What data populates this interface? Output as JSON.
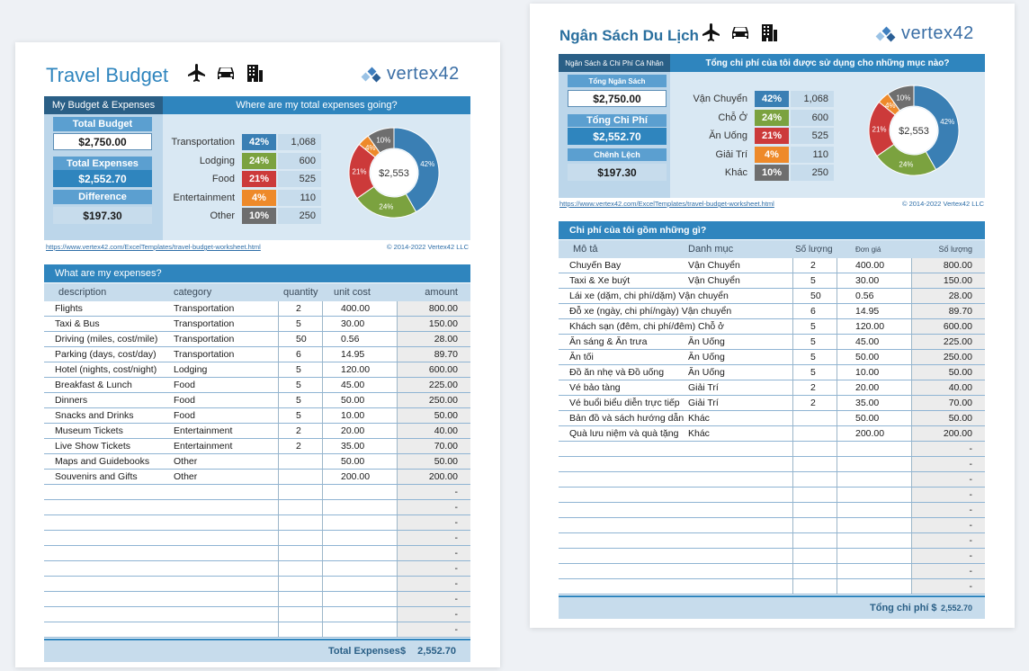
{
  "colors": {
    "transport": "#3a7fb4",
    "lodging": "#7ba23f",
    "food": "#cc3a3a",
    "entertainment": "#ee8a2a",
    "other": "#6e6e6e"
  },
  "en": {
    "title": "Travel Budget",
    "logo": "vertex42",
    "left_header": "My Budget & Expenses",
    "right_header": "Where are my total expenses going?",
    "total_budget_label": "Total Budget",
    "total_budget": "$2,750.00",
    "total_expenses_label": "Total Expenses",
    "total_expenses": "$2,552.70",
    "difference_label": "Difference",
    "difference": "$197.30",
    "categories": [
      {
        "name": "Transportation",
        "pct": "42%",
        "amount": "1,068"
      },
      {
        "name": "Lodging",
        "pct": "24%",
        "amount": "600"
      },
      {
        "name": "Food",
        "pct": "21%",
        "amount": "525"
      },
      {
        "name": "Entertainment",
        "pct": "4%",
        "amount": "110"
      },
      {
        "name": "Other",
        "pct": "10%",
        "amount": "250"
      }
    ],
    "donut_center": "$2,553",
    "url": "https://www.vertex42.com/ExcelTemplates/travel-budget-worksheet.html",
    "copyright": "© 2014-2022 Vertex42 LLC",
    "table_title": "What are my expenses?",
    "headers": {
      "desc": "description",
      "cat": "category",
      "qty": "quantity",
      "unit": "unit cost",
      "amt": "amount"
    },
    "rows": [
      {
        "desc": "Flights",
        "cat": "Transportation",
        "qty": "2",
        "unit": "400.00",
        "amt": "800.00"
      },
      {
        "desc": "Taxi & Bus",
        "cat": "Transportation",
        "qty": "5",
        "unit": "30.00",
        "amt": "150.00"
      },
      {
        "desc": "Driving (miles, cost/mile)",
        "cat": "Transportation",
        "qty": "50",
        "unit": "0.56",
        "amt": "28.00"
      },
      {
        "desc": "Parking (days, cost/day)",
        "cat": "Transportation",
        "qty": "6",
        "unit": "14.95",
        "amt": "89.70"
      },
      {
        "desc": "Hotel (nights, cost/night)",
        "cat": "Lodging",
        "qty": "5",
        "unit": "120.00",
        "amt": "600.00"
      },
      {
        "desc": "Breakfast & Lunch",
        "cat": "Food",
        "qty": "5",
        "unit": "45.00",
        "amt": "225.00"
      },
      {
        "desc": "Dinners",
        "cat": "Food",
        "qty": "5",
        "unit": "50.00",
        "amt": "250.00"
      },
      {
        "desc": "Snacks and Drinks",
        "cat": "Food",
        "qty": "5",
        "unit": "10.00",
        "amt": "50.00"
      },
      {
        "desc": "Museum Tickets",
        "cat": "Entertainment",
        "qty": "2",
        "unit": "20.00",
        "amt": "40.00"
      },
      {
        "desc": "Live Show Tickets",
        "cat": "Entertainment",
        "qty": "2",
        "unit": "35.00",
        "amt": "70.00"
      },
      {
        "desc": "Maps and Guidebooks",
        "cat": "Other",
        "qty": "",
        "unit": "50.00",
        "amt": "50.00"
      },
      {
        "desc": "Souvenirs and Gifts",
        "cat": "Other",
        "qty": "",
        "unit": "200.00",
        "amt": "200.00"
      },
      {
        "desc": "",
        "cat": "",
        "qty": "",
        "unit": "",
        "amt": "-"
      },
      {
        "desc": "",
        "cat": "",
        "qty": "",
        "unit": "",
        "amt": "-"
      },
      {
        "desc": "",
        "cat": "",
        "qty": "",
        "unit": "",
        "amt": "-"
      },
      {
        "desc": "",
        "cat": "",
        "qty": "",
        "unit": "",
        "amt": "-"
      },
      {
        "desc": "",
        "cat": "",
        "qty": "",
        "unit": "",
        "amt": "-"
      },
      {
        "desc": "",
        "cat": "",
        "qty": "",
        "unit": "",
        "amt": "-"
      },
      {
        "desc": "",
        "cat": "",
        "qty": "",
        "unit": "",
        "amt": "-"
      },
      {
        "desc": "",
        "cat": "",
        "qty": "",
        "unit": "",
        "amt": "-"
      },
      {
        "desc": "",
        "cat": "",
        "qty": "",
        "unit": "",
        "amt": "-"
      },
      {
        "desc": "",
        "cat": "",
        "qty": "",
        "unit": "",
        "amt": "-"
      }
    ],
    "total_label": "Total Expenses",
    "total_currency": "$",
    "total_value": "2,552.70"
  },
  "vi": {
    "title": "Ngân Sách Du Lịch",
    "logo": "vertex42",
    "left_header": "Ngân Sách & Chi Phí Cá Nhân",
    "right_header": "Tổng chi phí của tôi được sử dụng cho những mục nào?",
    "total_budget_label": "Tổng Ngân Sách",
    "total_budget": "$2,750.00",
    "total_expenses_label": "Tổng Chi Phí",
    "total_expenses": "$2,552.70",
    "difference_label": "Chênh Lệch",
    "difference": "$197.30",
    "categories": [
      {
        "name": "Vận Chuyển",
        "pct": "42%",
        "amount": "1,068"
      },
      {
        "name": "Chỗ Ở",
        "pct": "24%",
        "amount": "600"
      },
      {
        "name": "Ăn Uống",
        "pct": "21%",
        "amount": "525"
      },
      {
        "name": "Giải Trí",
        "pct": "4%",
        "amount": "110"
      },
      {
        "name": "Khác",
        "pct": "10%",
        "amount": "250"
      }
    ],
    "donut_center": "$2,553",
    "url": "https://www.vertex42.com/ExcelTemplates/travel-budget-worksheet.html",
    "copyright": "© 2014-2022 Vertex42 LLC",
    "table_title": "Chi phí của tôi gồm những gì?",
    "headers": {
      "desc": "Mô tả",
      "cat": "Danh mục",
      "qty": "Số lượng",
      "unit": "Đơn giá",
      "amt": "Số lượng"
    },
    "rows": [
      {
        "desc": "Chuyến Bay",
        "cat": "Vận Chuyển",
        "qty": "2",
        "unit": "400.00",
        "amt": "800.00"
      },
      {
        "desc": "Taxi & Xe buýt",
        "cat": "Vận Chuyển",
        "qty": "5",
        "unit": "30.00",
        "amt": "150.00"
      },
      {
        "desc": "Lái xe (dặm, chi phí/dặm) Vận chuyển",
        "cat": "",
        "qty": "50",
        "unit": "0.56",
        "amt": "28.00"
      },
      {
        "desc": "Đỗ xe (ngày, chi phí/ngày) Vận chuyển",
        "cat": "",
        "qty": "6",
        "unit": "14.95",
        "amt": "89.70"
      },
      {
        "desc": "Khách sạn (đêm, chi phí/đêm) Chỗ ở",
        "cat": "",
        "qty": "5",
        "unit": "120.00",
        "amt": "600.00"
      },
      {
        "desc": "Ăn sáng & Ăn trưa",
        "cat": "Ăn Uống",
        "qty": "5",
        "unit": "45.00",
        "amt": "225.00"
      },
      {
        "desc": "Ăn tối",
        "cat": "Ăn Uống",
        "qty": "5",
        "unit": "50.00",
        "amt": "250.00"
      },
      {
        "desc": "Đồ ăn nhẹ và Đồ uống",
        "cat": "Ăn Uống",
        "qty": "5",
        "unit": "10.00",
        "amt": "50.00"
      },
      {
        "desc": "Vé bảo tàng",
        "cat": "Giải Trí",
        "qty": "2",
        "unit": "20.00",
        "amt": "40.00"
      },
      {
        "desc": "Vé buổi biểu diễn trực tiếp",
        "cat": "Giải Trí",
        "qty": "2",
        "unit": "35.00",
        "amt": "70.00"
      },
      {
        "desc": "Bản đồ và sách hướng dẫn",
        "cat": "Khác",
        "qty": "",
        "unit": "50.00",
        "amt": "50.00"
      },
      {
        "desc": "Quà lưu niệm và quà tặng",
        "cat": "Khác",
        "qty": "",
        "unit": "200.00",
        "amt": "200.00"
      },
      {
        "desc": "",
        "cat": "",
        "qty": "",
        "unit": "",
        "amt": "-"
      },
      {
        "desc": "",
        "cat": "",
        "qty": "",
        "unit": "",
        "amt": "-"
      },
      {
        "desc": "",
        "cat": "",
        "qty": "",
        "unit": "",
        "amt": "-"
      },
      {
        "desc": "",
        "cat": "",
        "qty": "",
        "unit": "",
        "amt": "-"
      },
      {
        "desc": "",
        "cat": "",
        "qty": "",
        "unit": "",
        "amt": "-"
      },
      {
        "desc": "",
        "cat": "",
        "qty": "",
        "unit": "",
        "amt": "-"
      },
      {
        "desc": "",
        "cat": "",
        "qty": "",
        "unit": "",
        "amt": "-"
      },
      {
        "desc": "",
        "cat": "",
        "qty": "",
        "unit": "",
        "amt": "-"
      },
      {
        "desc": "",
        "cat": "",
        "qty": "",
        "unit": "",
        "amt": "-"
      },
      {
        "desc": "",
        "cat": "",
        "qty": "",
        "unit": "",
        "amt": "-"
      }
    ],
    "total_label": "Tổng chi phí $",
    "total_value": "2,552.70"
  }
}
